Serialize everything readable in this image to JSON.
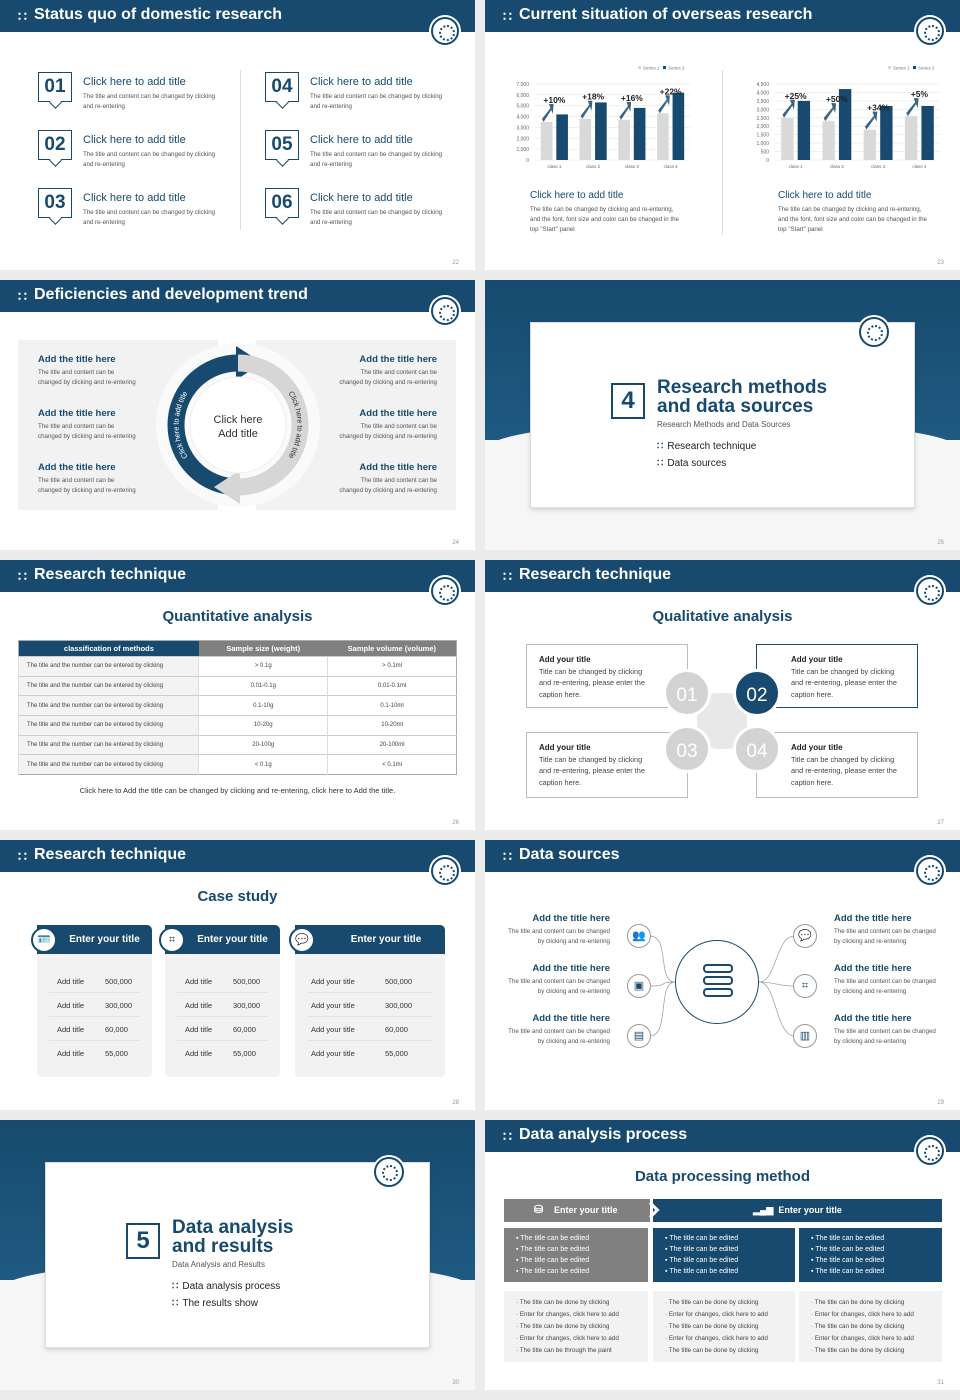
{
  "colors": {
    "navy": "#174a6e",
    "grey": "#d9d9d9",
    "panel": "#f2f2f2",
    "dark_grey": "#7f7f7f"
  },
  "slides": [
    {
      "page": "22",
      "header": "Status quo of domestic research",
      "items": [
        {
          "num": "01",
          "title": "Click here to add title",
          "body": "The title and content can be changed by clicking and re-entering"
        },
        {
          "num": "02",
          "title": "Click here to add title",
          "body": "The title and content can be changed by clicking and re-entering"
        },
        {
          "num": "03",
          "title": "Click here to add title",
          "body": "The title and content can be changed by clicking and re-entering"
        },
        {
          "num": "04",
          "title": "Click here to add title",
          "body": "The title and content can be changed by clicking and re-entering"
        },
        {
          "num": "05",
          "title": "Click here to add title",
          "body": "The title and content can be changed by clicking and re-entering"
        },
        {
          "num": "06",
          "title": "Click here to add title",
          "body": "The title and content can be changed by clicking and re-entering"
        }
      ]
    },
    {
      "page": "23",
      "header": "Current situation of overseas research",
      "blocks": [
        {
          "title": "Click here to add title",
          "body": "The title can be changed by clicking and re-entering, and the font, font size and color can be changed in the top \"Start\" panel"
        },
        {
          "title": "Click here to add title",
          "body": "The title can be changed by clicking and re-entering, and the font, font size and color can be changed in the top \"Start\" panel"
        }
      ]
    },
    {
      "page": "24",
      "header": "Deficiencies and development trend",
      "left": [
        {
          "title": "Add the title here",
          "body": "The title and content can be changed by clicking and re-entering"
        },
        {
          "title": "Add the title here",
          "body": "The title and content can be changed by clicking and re-entering"
        },
        {
          "title": "Add the title here",
          "body": "The title and content can be changed by clicking and re-entering"
        }
      ],
      "right": [
        {
          "title": "Add the title here",
          "body": "The title and content can be changed by clicking and re-entering"
        },
        {
          "title": "Add the title here",
          "body": "The title and content can be changed by clicking and re-entering"
        },
        {
          "title": "Add the title here",
          "body": "The title and content can be changed by clicking and re-entering"
        }
      ],
      "center_line1": "Click here",
      "center_line2": "Add title",
      "arc_left": "Click here to add title",
      "arc_right": "Click here to add title"
    },
    {
      "page": "25",
      "number": "4",
      "title_line1": "Research methods",
      "title_line2": "and data sources",
      "subtitle": "Research Methods and Data Sources",
      "bullets": [
        "Research technique",
        "Data sources"
      ]
    },
    {
      "page": "26",
      "header": "Research technique",
      "title": "Quantitative analysis",
      "columns": [
        "classification of methods",
        "Sample size (weight)",
        "Sample volume (volume)"
      ],
      "rows": [
        [
          "The title and the number can be entered by clicking",
          "> 0.1g",
          "> 0.1ml"
        ],
        [
          "The title and the number can be entered by clicking",
          "0.01-0.1g",
          "0.01-0.1ml"
        ],
        [
          "The title and the number can be entered by clicking",
          "0.1-10g",
          "0.1-10ml"
        ],
        [
          "The title and the number can be entered by clicking",
          "10-20g",
          "10-20ml"
        ],
        [
          "The title and the number can be entered by clicking",
          "20-100g",
          "20-100ml"
        ],
        [
          "The title and the number can be entered by clicking",
          "< 0.1g",
          "< 0.1ml"
        ]
      ],
      "caption": "Click here to Add the title can be changed by clicking and re-entering, click here to Add the title."
    },
    {
      "page": "27",
      "header": "Research technique",
      "title": "Qualitative analysis",
      "boxes": [
        {
          "num": "01",
          "title": "Add your title",
          "body": "Title can be changed by clicking and re-entering, please enter the caption here."
        },
        {
          "num": "02",
          "title": "Add your title",
          "body": "Title can be changed by clicking and re-entering, please enter the caption here."
        },
        {
          "num": "03",
          "title": "Add your title",
          "body": "Title can be changed by clicking and re-entering, please enter the caption here."
        },
        {
          "num": "04",
          "title": "Add your title",
          "body": "Title can be changed by clicking and re-entering, please enter the caption here."
        }
      ]
    },
    {
      "page": "28",
      "header": "Research technique",
      "title": "Case study",
      "cards": [
        {
          "icon": "id-card-icon",
          "title": "Enter your title",
          "rows": [
            [
              "Add title",
              "500,000"
            ],
            [
              "Add title",
              "300,000"
            ],
            [
              "Add title",
              "60,000"
            ],
            [
              "Add title",
              "55,000"
            ]
          ]
        },
        {
          "icon": "scan-icon",
          "title": "Enter your title",
          "rows": [
            [
              "Add title",
              "500,000"
            ],
            [
              "Add title",
              "300,000"
            ],
            [
              "Add title",
              "60,000"
            ],
            [
              "Add title",
              "55,000"
            ]
          ]
        },
        {
          "icon": "chat-icon",
          "title": "Enter your title",
          "rows": [
            [
              "Add your title",
              "500,000"
            ],
            [
              "Add your title",
              "300,000"
            ],
            [
              "Add your title",
              "60,000"
            ],
            [
              "Add your title",
              "55,000"
            ]
          ]
        }
      ]
    },
    {
      "page": "29",
      "header": "Data sources",
      "items": [
        {
          "icon": "people-icon",
          "glyph": "👥",
          "title": "Add the title here",
          "body": "The title and content can be changed by clicking and re-entering"
        },
        {
          "icon": "cube-icon",
          "glyph": "▣",
          "title": "Add the title here",
          "body": "The title and content can be changed by clicking and re-entering"
        },
        {
          "icon": "document-icon",
          "glyph": "▤",
          "title": "Add the title here",
          "body": "The title and content can be changed by clicking and re-entering"
        },
        {
          "icon": "chat-icon",
          "glyph": "💬",
          "title": "Add the title here",
          "body": "The title and content can be changed by clicking and re-entering"
        },
        {
          "icon": "scan-icon",
          "glyph": "⌗",
          "title": "Add the title here",
          "body": "The title and content can be changed by clicking and re-entering"
        },
        {
          "icon": "building-icon",
          "glyph": "▥",
          "title": "Add the title here",
          "body": "The title and content can be changed by clicking and re-entering"
        }
      ]
    },
    {
      "page": "30",
      "number": "5",
      "title_line1": "Data analysis",
      "title_line2": "and results",
      "subtitle": "Data Analysis and Results",
      "bullets": [
        "Data analysis process",
        "The results show"
      ]
    },
    {
      "page": "31",
      "header": "Data analysis process",
      "title": "Data processing method",
      "bar_left": "Enter your title",
      "bar_right": "Enter your title",
      "top": [
        [
          "The title can be edited",
          "The title can be edited",
          "The title can be edited",
          "The title can be edited"
        ],
        [
          "The title can be edited",
          "The title can be edited",
          "The title can be edited",
          "The title can be edited"
        ],
        [
          "The title can be edited",
          "The title can be edited",
          "The title can be edited",
          "The title can be edited"
        ]
      ],
      "bottom": [
        [
          "The title can be done by clicking",
          "Enter for changes, click here to add",
          "The title can be done by clicking",
          "Enter for changes, click here to add",
          "The title can be through the paint"
        ],
        [
          "The title can be done by clicking",
          "Enter for changes, click here to add",
          "The title can be done by clicking",
          "Enter for changes, click here to add",
          "The title can be done by clicking"
        ],
        [
          "The title can be done by clicking",
          "Enter for changes, click here to add",
          "The title can be done by clicking",
          "Enter for changes, click here to add",
          "The title can be done by clicking"
        ]
      ]
    }
  ],
  "chart_data": [
    {
      "type": "bar",
      "categories": [
        "class 1",
        "class 2",
        "class 3",
        "class 4"
      ],
      "series": [
        {
          "name": "Series 1",
          "values": [
            3500,
            3800,
            3700,
            4300
          ]
        },
        {
          "name": "Series 2",
          "values": [
            4200,
            5300,
            4800,
            6200
          ]
        }
      ],
      "annotations": [
        "+10%",
        "+18%",
        "+16%",
        "+22%"
      ],
      "ylim": [
        0,
        7000
      ],
      "yticks": [
        "0",
        "1,000",
        "2,000",
        "3,000",
        "4,000",
        "5,000",
        "6,000",
        "7,000"
      ],
      "grid": true,
      "legend": "top-right"
    },
    {
      "type": "bar",
      "categories": [
        "class 1",
        "class 2",
        "class 3",
        "class 4"
      ],
      "series": [
        {
          "name": "Series 1",
          "values": [
            2500,
            2300,
            1800,
            2600
          ]
        },
        {
          "name": "Series 2",
          "values": [
            3500,
            4200,
            3200,
            3200
          ]
        }
      ],
      "annotations": [
        "+25%",
        "+50%",
        "+34%",
        "+5%"
      ],
      "ylim": [
        0,
        4500
      ],
      "yticks": [
        "0",
        "500",
        "1,000",
        "1,500",
        "2,000",
        "2,500",
        "3,000",
        "3,500",
        "4,000",
        "4,500"
      ],
      "grid": true,
      "legend": "top-right"
    }
  ]
}
